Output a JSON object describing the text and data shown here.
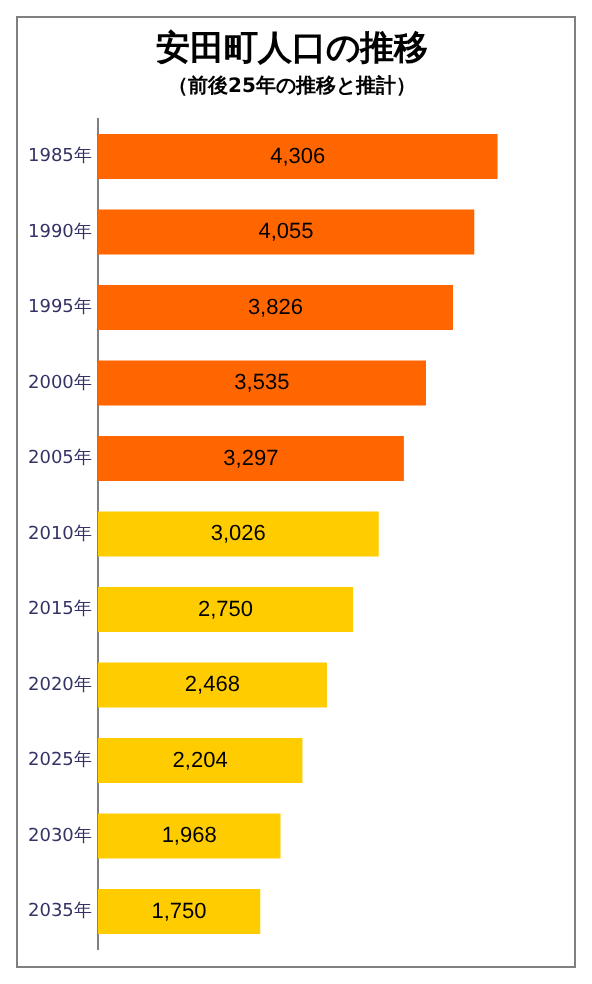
{
  "chart_data": {
    "type": "bar",
    "orientation": "horizontal",
    "title": "安田町人口の推移",
    "subtitle": "（前後25年の推移と推計）",
    "categories": [
      "1985年",
      "1990年",
      "1995年",
      "2000年",
      "2005年",
      "2010年",
      "2015年",
      "2020年",
      "2025年",
      "2030年",
      "2035年"
    ],
    "values": [
      4306,
      4055,
      3826,
      3535,
      3297,
      3026,
      2750,
      2468,
      2204,
      1968,
      1750
    ],
    "colors": [
      "#ff6600",
      "#ff6600",
      "#ff6600",
      "#ff6600",
      "#ff6600",
      "#ffcc00",
      "#ffcc00",
      "#ffcc00",
      "#ffcc00",
      "#ffcc00",
      "#ffcc00"
    ],
    "value_labels": [
      "4,306",
      "4,055",
      "3,826",
      "3,535",
      "3,297",
      "3,026",
      "2,750",
      "2,468",
      "2,204",
      "1,968",
      "1,750"
    ],
    "tick_labels": "y",
    "grid": false,
    "legend": false
  }
}
